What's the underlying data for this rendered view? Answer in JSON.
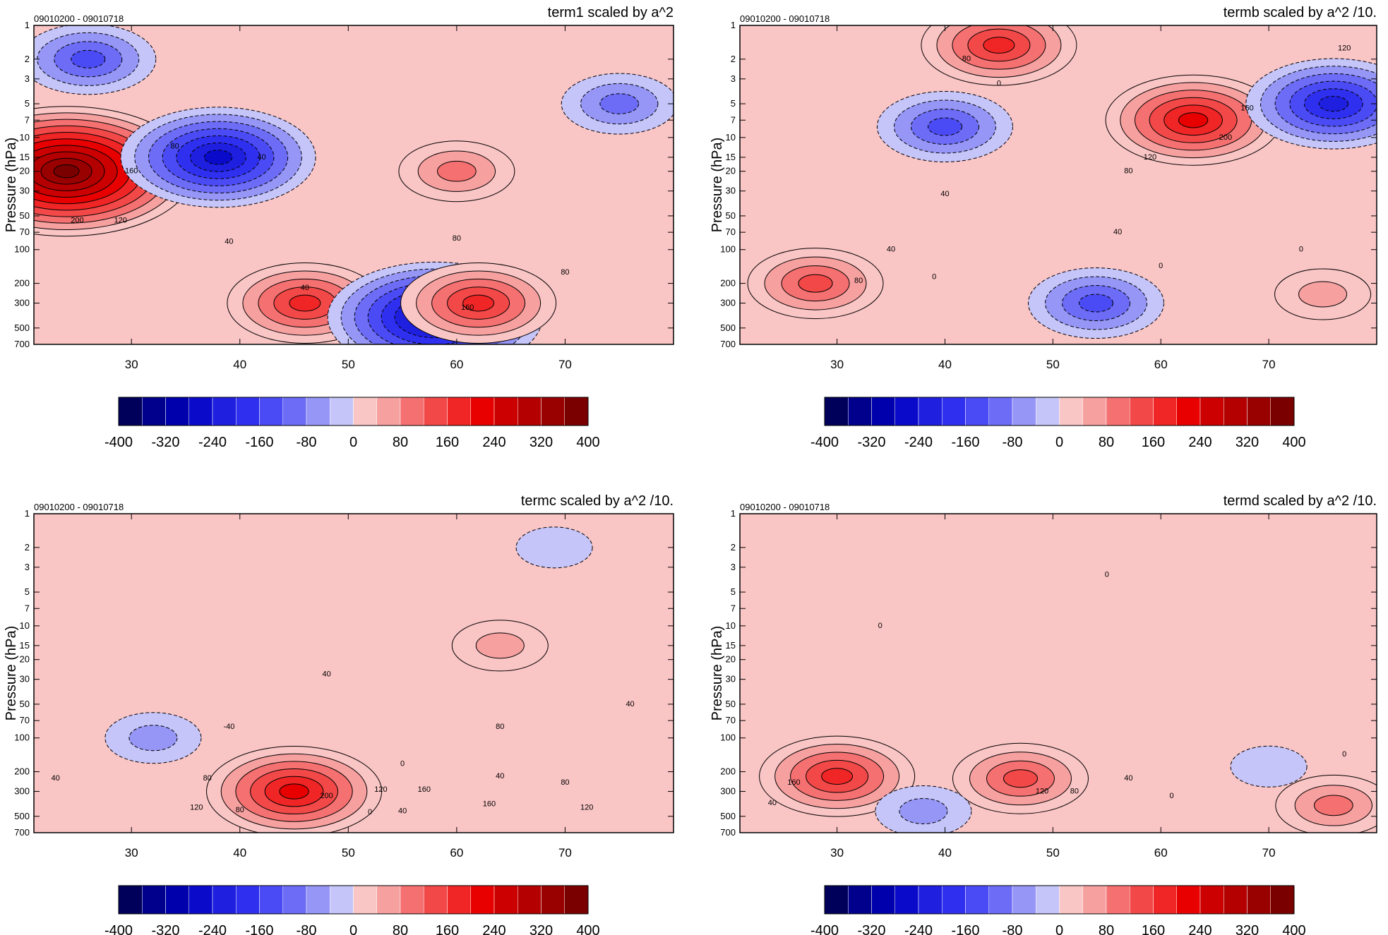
{
  "colorbar_levels": [
    -400,
    -360,
    -320,
    -280,
    -240,
    -200,
    -160,
    -120,
    -80,
    -40,
    0,
    40,
    80,
    120,
    160,
    200,
    240,
    280,
    320,
    360,
    400
  ],
  "colorbar_labels": [
    "-400",
    "-320",
    "-240",
    "-160",
    "-80",
    "0",
    "80",
    "160",
    "240",
    "320",
    "400"
  ],
  "colors": [
    "#00005a",
    "#00008c",
    "#0000ad",
    "#0a0acb",
    "#1f1fe0",
    "#2f2ff0",
    "#4b4bf5",
    "#6c6cf7",
    "#9696f7",
    "#c5c5fa",
    "#fac5c5",
    "#f7a0a0",
    "#f57070",
    "#f24848",
    "#f02525",
    "#e80000",
    "#cc0000",
    "#b40000",
    "#990000",
    "#7a0000"
  ],
  "y_ticks": [
    "1",
    "2",
    "3",
    "5",
    "7",
    "10",
    "15",
    "20",
    "30",
    "50",
    "70",
    "100",
    "200",
    "300",
    "500",
    "700"
  ],
  "x_ticks": [
    "30",
    "40",
    "50",
    "60",
    "70"
  ],
  "chart_data": [
    {
      "type": "contour",
      "title": "term1 scaled by a^2",
      "subtitle": "09010200 - 09010718",
      "ylabel": "Pressure (hPa)",
      "xlabel": "",
      "xlim": [
        21,
        80
      ],
      "ylim": [
        700,
        1
      ],
      "y_scale": "log",
      "contour_interval": 40,
      "features": [
        {
          "x": 24,
          "y": 20,
          "value": 400
        },
        {
          "x": 38,
          "y": 15,
          "value": -280
        },
        {
          "x": 60,
          "y": 20,
          "value": 120
        },
        {
          "x": 75,
          "y": 5,
          "value": -120
        },
        {
          "x": 26,
          "y": 2,
          "value": -160
        },
        {
          "x": 46,
          "y": 300,
          "value": 200
        },
        {
          "x": 58,
          "y": 400,
          "value": -320
        },
        {
          "x": 62,
          "y": 300,
          "value": 200
        }
      ],
      "contour_labels": [
        {
          "text": "80",
          "x": 34,
          "y": 12
        },
        {
          "text": "160",
          "x": 30,
          "y": 20
        },
        {
          "text": "200",
          "x": 25,
          "y": 55
        },
        {
          "text": "120",
          "x": 29,
          "y": 55
        },
        {
          "text": "40",
          "x": 42,
          "y": 15
        },
        {
          "text": "40",
          "x": 39,
          "y": 85
        },
        {
          "text": "80",
          "x": 60,
          "y": 80
        },
        {
          "text": "80",
          "x": 70,
          "y": 160
        },
        {
          "text": "40",
          "x": 46,
          "y": 220
        },
        {
          "text": "160",
          "x": 61,
          "y": 330
        }
      ]
    },
    {
      "type": "contour",
      "title": "termb scaled by a^2 /10.",
      "subtitle": "09010200 - 09010718",
      "ylabel": "Pressure (hPa)",
      "xlabel": "",
      "xlim": [
        21,
        80
      ],
      "ylim": [
        700,
        1
      ],
      "y_scale": "log",
      "contour_interval": 40,
      "features": [
        {
          "x": 63,
          "y": 7,
          "value": 240
        },
        {
          "x": 45,
          "y": 1.5,
          "value": 200
        },
        {
          "x": 76,
          "y": 5,
          "value": -240
        },
        {
          "x": 40,
          "y": 8,
          "value": -160
        },
        {
          "x": 28,
          "y": 200,
          "value": 160
        },
        {
          "x": 54,
          "y": 300,
          "value": -160
        },
        {
          "x": 75,
          "y": 250,
          "value": 80
        }
      ],
      "contour_labels": [
        {
          "text": "80",
          "x": 42,
          "y": 2
        },
        {
          "text": "0",
          "x": 45,
          "y": 3.3
        },
        {
          "text": "120",
          "x": 77,
          "y": 1.6
        },
        {
          "text": "160",
          "x": 68,
          "y": 5.5
        },
        {
          "text": "200",
          "x": 66,
          "y": 10
        },
        {
          "text": "120",
          "x": 59,
          "y": 15
        },
        {
          "text": "80",
          "x": 57,
          "y": 20
        },
        {
          "text": "40",
          "x": 40,
          "y": 32
        },
        {
          "text": "40",
          "x": 56,
          "y": 70
        },
        {
          "text": "0",
          "x": 60,
          "y": 140
        },
        {
          "text": "0",
          "x": 73,
          "y": 100
        },
        {
          "text": "40",
          "x": 35,
          "y": 100
        },
        {
          "text": "80",
          "x": 32,
          "y": 190
        },
        {
          "text": "0",
          "x": 39,
          "y": 175
        }
      ]
    },
    {
      "type": "contour",
      "title": "termc scaled by a^2 /10.",
      "subtitle": "09010200 - 09010718",
      "ylabel": "Pressure (hPa)",
      "xlabel": "",
      "xlim": [
        21,
        80
      ],
      "ylim": [
        700,
        1
      ],
      "y_scale": "log",
      "contour_interval": 40,
      "features": [
        {
          "x": 64,
          "y": 15,
          "value": 80
        },
        {
          "x": 32,
          "y": 100,
          "value": -80
        },
        {
          "x": 45,
          "y": 300,
          "value": 240
        },
        {
          "x": 69,
          "y": 2,
          "value": -40
        }
      ],
      "contour_labels": [
        {
          "text": "40",
          "x": 48,
          "y": 27
        },
        {
          "text": "40",
          "x": 76,
          "y": 50
        },
        {
          "text": "80",
          "x": 64,
          "y": 80
        },
        {
          "text": "-40",
          "x": 39,
          "y": 80
        },
        {
          "text": "0",
          "x": 55,
          "y": 170
        },
        {
          "text": "40",
          "x": 23,
          "y": 230
        },
        {
          "text": "80",
          "x": 37,
          "y": 230
        },
        {
          "text": "40",
          "x": 64,
          "y": 220
        },
        {
          "text": "80",
          "x": 70,
          "y": 250
        },
        {
          "text": "120",
          "x": 53,
          "y": 290
        },
        {
          "text": "160",
          "x": 57,
          "y": 290
        },
        {
          "text": "200",
          "x": 48,
          "y": 330
        },
        {
          "text": "160",
          "x": 63,
          "y": 390
        },
        {
          "text": "120",
          "x": 36,
          "y": 420
        },
        {
          "text": "80",
          "x": 40,
          "y": 440
        },
        {
          "text": "0",
          "x": 52,
          "y": 460
        },
        {
          "text": "40",
          "x": 55,
          "y": 450
        },
        {
          "text": "120",
          "x": 72,
          "y": 420
        }
      ]
    },
    {
      "type": "contour",
      "title": "termd scaled by a^2 /10.",
      "subtitle": "09010200 - 09010718",
      "ylabel": "Pressure (hPa)",
      "xlabel": "",
      "xlim": [
        21,
        80
      ],
      "ylim": [
        700,
        1
      ],
      "y_scale": "log",
      "contour_interval": 40,
      "features": [
        {
          "x": 30,
          "y": 220,
          "value": 200
        },
        {
          "x": 47,
          "y": 230,
          "value": 160
        },
        {
          "x": 76,
          "y": 400,
          "value": 120
        },
        {
          "x": 38,
          "y": 450,
          "value": -80
        },
        {
          "x": 70,
          "y": 180,
          "value": -40
        }
      ],
      "contour_labels": [
        {
          "text": "0",
          "x": 55,
          "y": 3.5
        },
        {
          "text": "0",
          "x": 34,
          "y": 10
        },
        {
          "text": "0",
          "x": 77,
          "y": 140
        },
        {
          "text": "160",
          "x": 26,
          "y": 250
        },
        {
          "text": "40",
          "x": 24,
          "y": 380
        },
        {
          "text": "120",
          "x": 49,
          "y": 300
        },
        {
          "text": "80",
          "x": 52,
          "y": 300
        },
        {
          "text": "40",
          "x": 57,
          "y": 230
        },
        {
          "text": "0",
          "x": 61,
          "y": 330
        }
      ]
    }
  ]
}
